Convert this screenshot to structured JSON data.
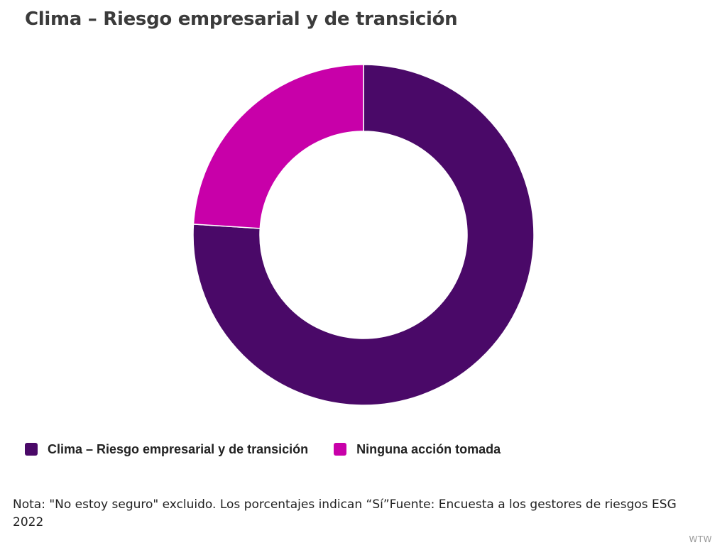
{
  "title": "Clima – Riesgo empresarial y de transición",
  "chart_data": {
    "type": "pie",
    "variant": "donut",
    "title": "Clima – Riesgo empresarial y de transición",
    "series": [
      {
        "name": "Clima – Riesgo empresarial y de transición",
        "value": 76,
        "color": "#4a0968"
      },
      {
        "name": "Ninguna acción tomada",
        "value": 24,
        "color": "#c800a9"
      }
    ],
    "legend": "bottom-left"
  },
  "note": "Nota: \"No estoy seguro\" excluido. Los porcentajes indican “Sí”Fuente: Encuesta a los gestores de riesgos ESG 2022",
  "brand": "WTW"
}
